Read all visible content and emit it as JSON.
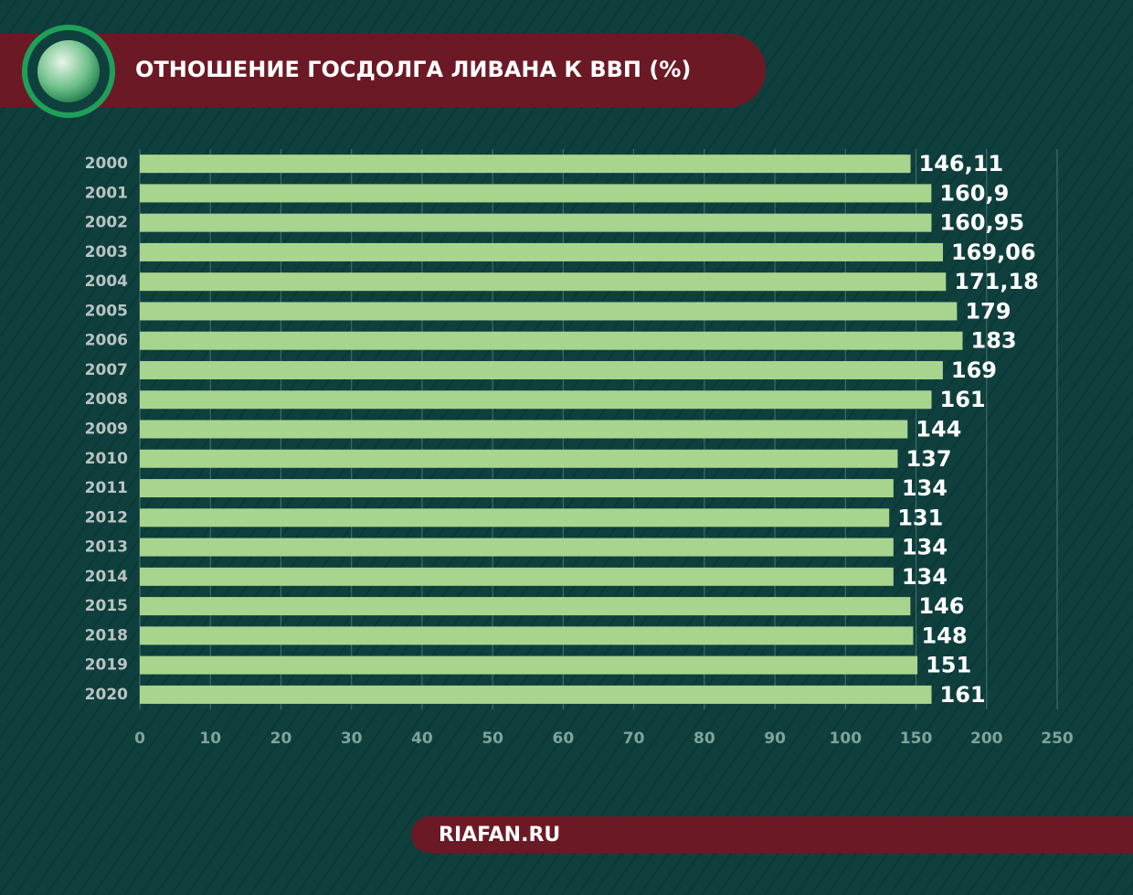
{
  "chart_data": {
    "type": "bar",
    "orientation": "horizontal",
    "title": "ОТНОШЕНИЕ ГОСДОЛГА ЛИВАНА К ВВП (%)",
    "source": "RIAFAN.RU",
    "categories": [
      "2000",
      "2001",
      "2002",
      "2003",
      "2004",
      "2005",
      "2006",
      "2007",
      "2008",
      "2009",
      "2010",
      "2011",
      "2012",
      "2013",
      "2014",
      "2015",
      "2018",
      "2019",
      "2020"
    ],
    "values": [
      146.11,
      160.9,
      160.95,
      169.06,
      171.18,
      179,
      183,
      169,
      161,
      144,
      137,
      134,
      131,
      134,
      134,
      146,
      148,
      151,
      161
    ],
    "value_labels": [
      "146,11",
      "160,9",
      "160,95",
      "169,06",
      "171,18",
      "179",
      "183",
      "169",
      "161",
      "144",
      "137",
      "134",
      "131",
      "134",
      "134",
      "146",
      "148",
      "151",
      "161"
    ],
    "color": "#a8d58e",
    "xlim": [
      0,
      250
    ],
    "xticks": [
      0,
      10,
      20,
      30,
      40,
      50,
      60,
      70,
      80,
      90,
      100,
      150,
      200,
      250
    ],
    "grid": true
  }
}
